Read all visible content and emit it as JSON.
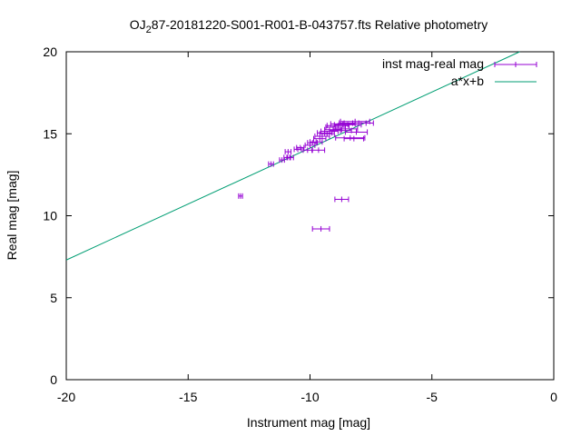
{
  "chart_data": {
    "type": "scatter",
    "title_prefix": "OJ",
    "title_sub": "2",
    "title_suffix": "87-20181220-S001-R001-B-043757.fts Relative photometry",
    "xlabel": "Instrument mag [mag]",
    "ylabel": "Real mag [mag]",
    "xlim": [
      -20,
      0
    ],
    "ylim": [
      0,
      20
    ],
    "xticks": [
      -20,
      -15,
      -10,
      -5,
      0
    ],
    "yticks": [
      0,
      5,
      10,
      15,
      20
    ],
    "grid": false,
    "legend_position": "top-right",
    "series": [
      {
        "name": "inst mag-real mag",
        "kind": "points-xerror",
        "color": "#9400d3",
        "points": [
          {
            "x": -12.85,
            "y": 11.2,
            "xerr": 0.08
          },
          {
            "x": -11.6,
            "y": 13.15,
            "xerr": 0.1
          },
          {
            "x": -11.15,
            "y": 13.4,
            "xerr": 0.1
          },
          {
            "x": -10.95,
            "y": 13.55,
            "xerr": 0.12
          },
          {
            "x": -10.8,
            "y": 13.55,
            "xerr": 0.12
          },
          {
            "x": -10.9,
            "y": 13.9,
            "xerr": 0.12
          },
          {
            "x": -10.5,
            "y": 14.05,
            "xerr": 0.15
          },
          {
            "x": -10.4,
            "y": 14.15,
            "xerr": 0.15
          },
          {
            "x": -10.1,
            "y": 14.0,
            "xerr": 0.18
          },
          {
            "x": -10.0,
            "y": 14.3,
            "xerr": 0.2
          },
          {
            "x": -9.9,
            "y": 14.45,
            "xerr": 0.2
          },
          {
            "x": -9.75,
            "y": 14.5,
            "xerr": 0.25
          },
          {
            "x": -9.65,
            "y": 14.0,
            "xerr": 0.25
          },
          {
            "x": -9.6,
            "y": 14.7,
            "xerr": 0.25
          },
          {
            "x": -9.5,
            "y": 14.85,
            "xerr": 0.3
          },
          {
            "x": -9.4,
            "y": 15.05,
            "xerr": 0.3
          },
          {
            "x": -9.3,
            "y": 15.0,
            "xerr": 0.3
          },
          {
            "x": -9.2,
            "y": 15.15,
            "xerr": 0.35
          },
          {
            "x": -9.05,
            "y": 15.25,
            "xerr": 0.35
          },
          {
            "x": -8.95,
            "y": 15.4,
            "xerr": 0.4
          },
          {
            "x": -8.85,
            "y": 15.5,
            "xerr": 0.45
          },
          {
            "x": -8.75,
            "y": 15.2,
            "xerr": 0.45
          },
          {
            "x": -8.65,
            "y": 15.6,
            "xerr": 0.5
          },
          {
            "x": -8.55,
            "y": 15.3,
            "xerr": 0.5
          },
          {
            "x": -8.45,
            "y": 15.55,
            "xerr": 0.55
          },
          {
            "x": -8.35,
            "y": 14.75,
            "xerr": 0.6
          },
          {
            "x": -8.25,
            "y": 15.65,
            "xerr": 0.55
          },
          {
            "x": -8.15,
            "y": 15.75,
            "xerr": 0.6
          },
          {
            "x": -8.1,
            "y": 15.1,
            "xerr": 0.45
          },
          {
            "x": -8.2,
            "y": 14.7,
            "xerr": 0.4
          },
          {
            "x": -8.0,
            "y": 15.65,
            "xerr": 0.6
          },
          {
            "x": -8.7,
            "y": 11.0,
            "xerr": 0.28
          },
          {
            "x": -9.55,
            "y": 9.2,
            "xerr": 0.35
          }
        ]
      },
      {
        "name": "a*x+b",
        "kind": "line",
        "color": "#009e73",
        "x": [
          -20,
          -1.4
        ],
        "y": [
          7.3,
          20
        ]
      }
    ]
  }
}
